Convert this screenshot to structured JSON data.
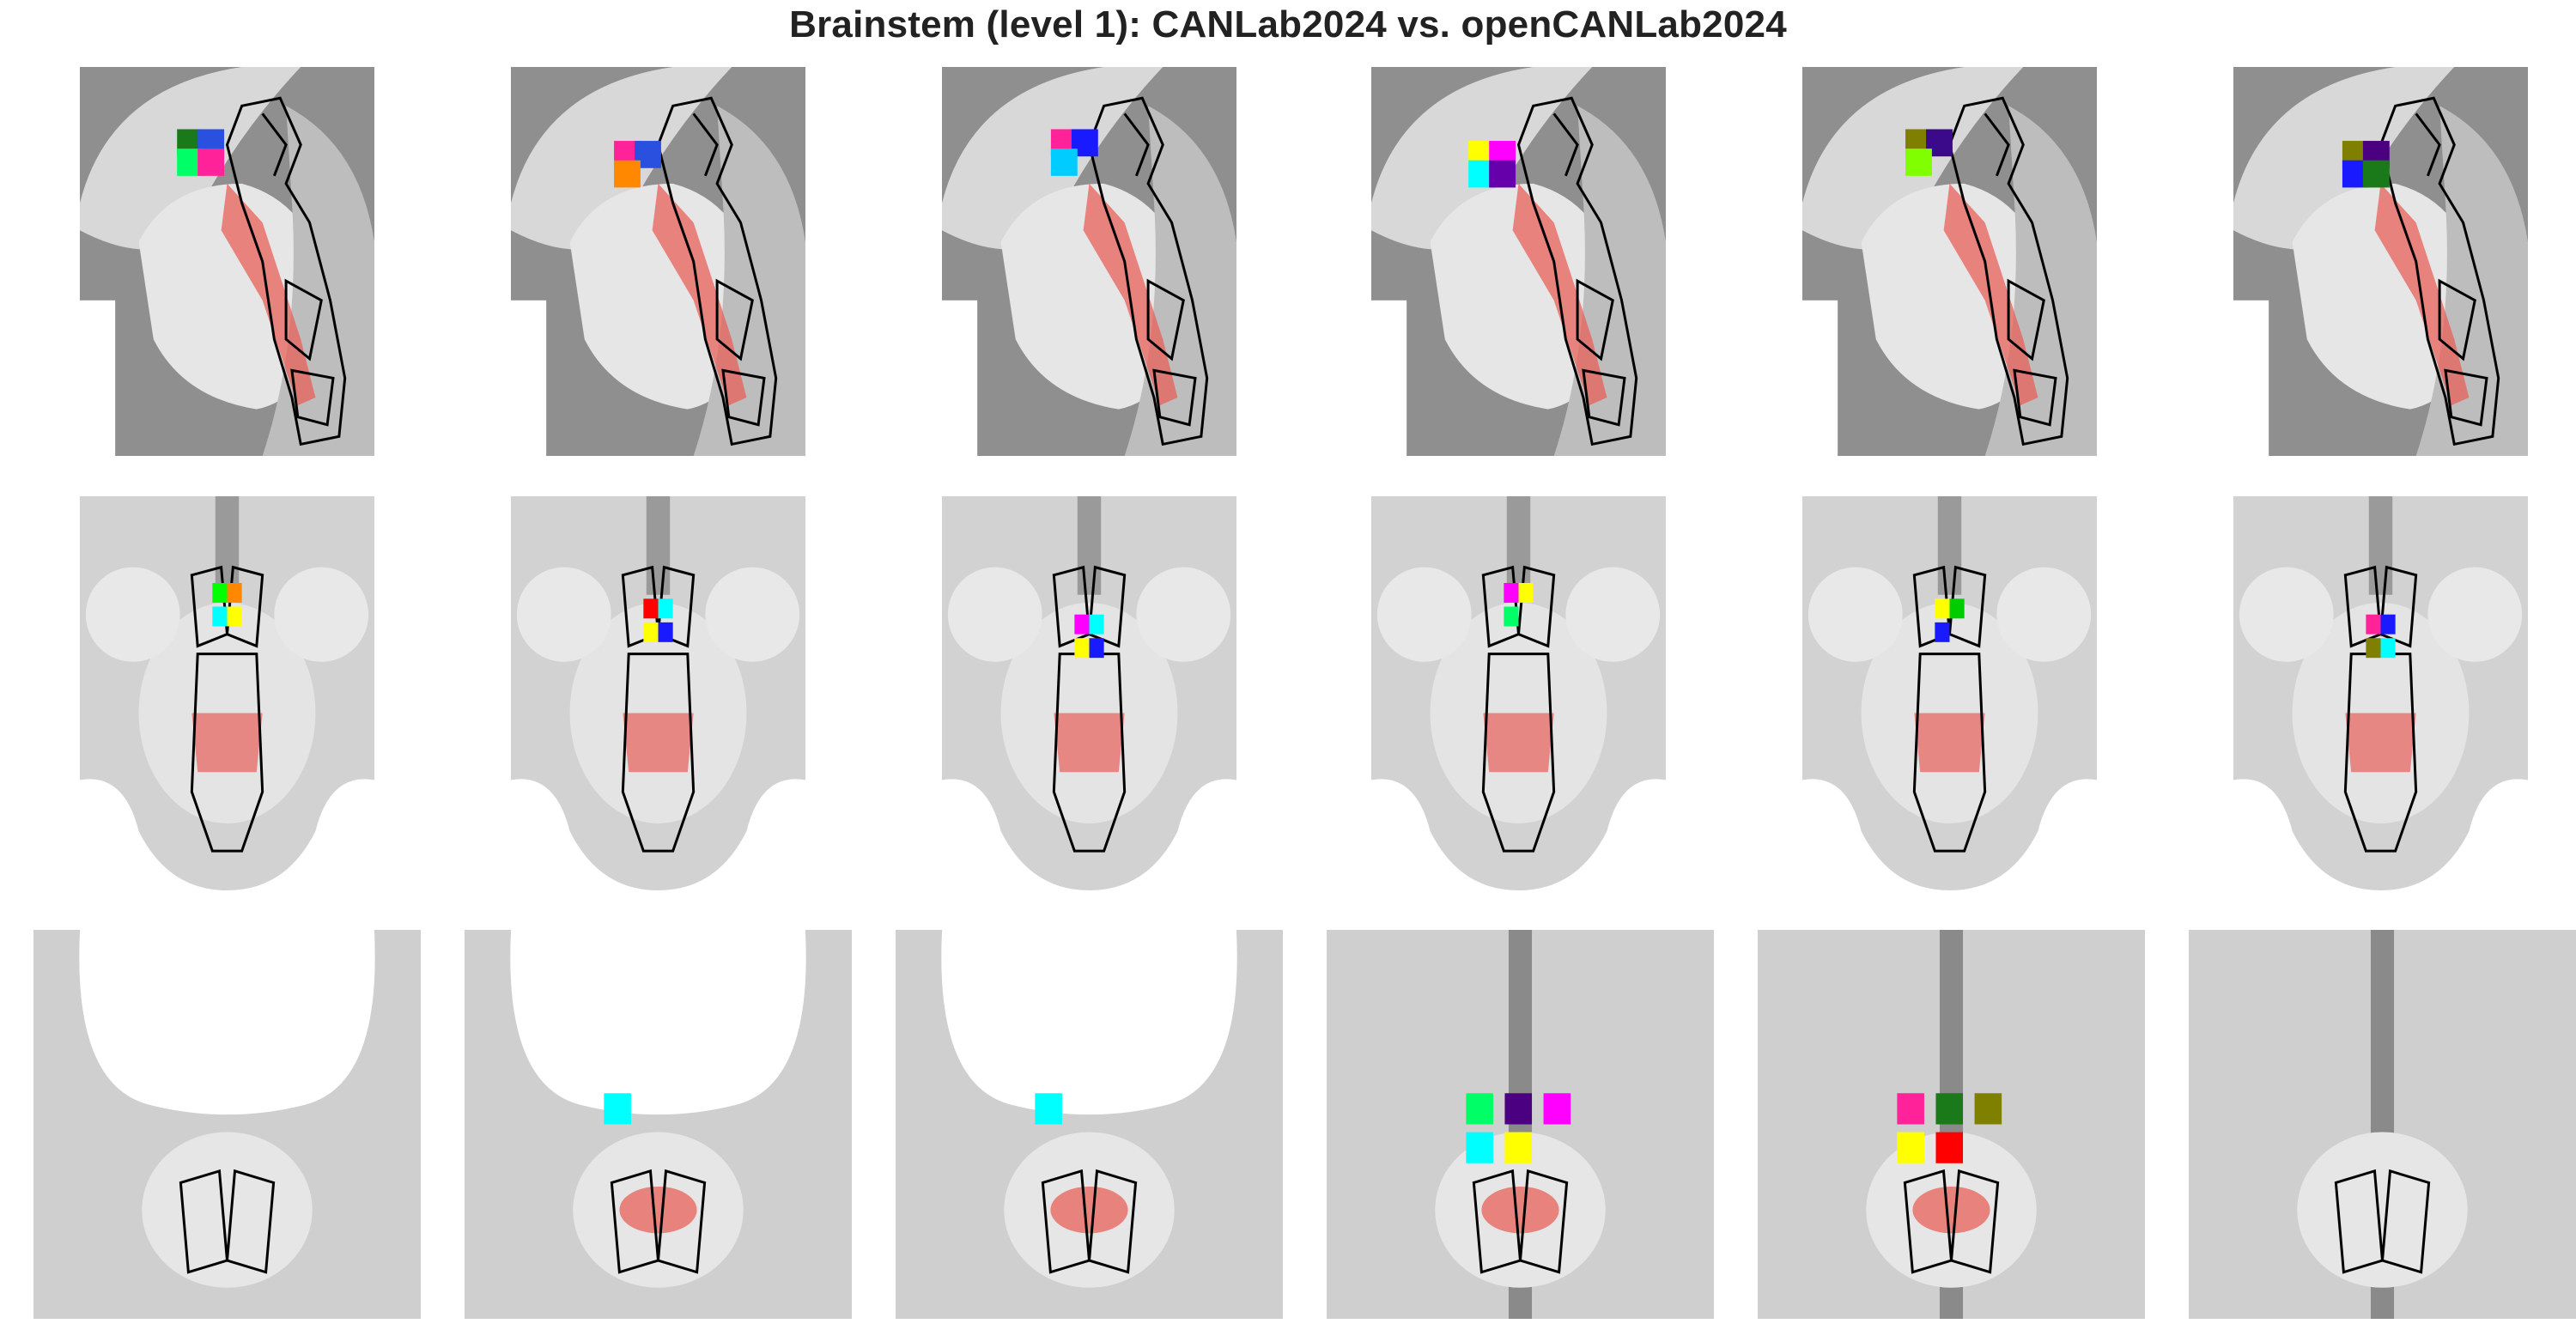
{
  "title": "Brainstem (level 1): CANLab2024 vs. openCANLab2024",
  "rows": [
    {
      "view": "sagittal",
      "panels": [
        {
          "blobs": [
            "#1a7a1a",
            "#2a50e0",
            "#00ff66",
            "#ff2299"
          ]
        },
        {
          "blobs": [
            "#ff2299",
            "#2a50e0",
            "#ff8800"
          ]
        },
        {
          "blobs": [
            "#ff2299",
            "#1a1aff",
            "#00ccff"
          ]
        },
        {
          "blobs": [
            "#ffff00",
            "#ff00ff",
            "#00ffff",
            "#6600aa"
          ]
        },
        {
          "blobs": [
            "#808000",
            "#3a0a8a",
            "#7fff00"
          ]
        },
        {
          "blobs": [
            "#808000",
            "#4b0082",
            "#1a1aff",
            "#1a7a1a"
          ]
        }
      ]
    },
    {
      "view": "axial",
      "panels": [
        {
          "blobs": [
            "#00ff00",
            "#ff8800",
            "#00ffff",
            "#ffff00"
          ]
        },
        {
          "blobs": [
            "#ff0000",
            "#00ffff",
            "#ffff00",
            "#1a1aff"
          ]
        },
        {
          "blobs": [
            "#ff00ff",
            "#00ffff",
            "#ffff00",
            "#1a1aff"
          ]
        },
        {
          "blobs": [
            "#ff00ff",
            "#ffff00",
            "#00ff66"
          ]
        },
        {
          "blobs": [
            "#ffff00",
            "#00cc00",
            "#1a1aff"
          ]
        },
        {
          "blobs": [
            "#ff2299",
            "#1a1aff",
            "#808000",
            "#00ffff"
          ]
        }
      ]
    },
    {
      "view": "coronal",
      "panels": [
        {
          "blobs": []
        },
        {
          "blobs": [
            "#00ffff"
          ]
        },
        {
          "blobs": [
            "#00ffff"
          ]
        },
        {
          "blobs": [
            "#00ff66",
            "#4b0082",
            "#ff00ff",
            "#00ffff",
            "#ffff00"
          ]
        },
        {
          "blobs": [
            "#ff2299",
            "#1a7a1a",
            "#808000",
            "#ffff00",
            "#ff0000"
          ]
        },
        {
          "blobs": []
        }
      ]
    }
  ],
  "colors": {
    "outline": "#000000",
    "overlay": "#e8605a",
    "background": "#ffffff"
  }
}
